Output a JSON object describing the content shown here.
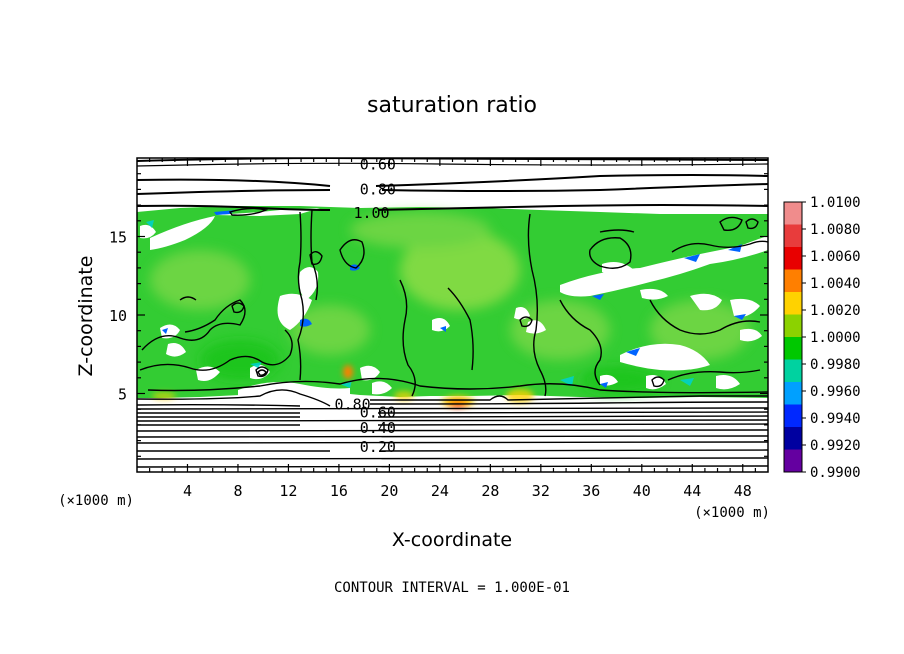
{
  "chart_data": {
    "type": "heatmap",
    "title": "saturation ratio",
    "xlabel": "X-coordinate",
    "ylabel": "Z-coordinate",
    "x_unit": "(×1000 m)",
    "z_unit": "(×1000 m)",
    "xlim": [
      0,
      50
    ],
    "ylim": [
      0,
      20
    ],
    "x_ticks": [
      4,
      8,
      12,
      16,
      20,
      24,
      28,
      32,
      36,
      40,
      44,
      48
    ],
    "y_ticks": [
      5,
      10,
      15
    ],
    "footer": "CONTOUR INTERVAL = 1.000E-01",
    "colorbar": {
      "labels": [
        "1.0100",
        "1.0080",
        "1.0060",
        "1.0040",
        "1.0020",
        "1.0000",
        "0.9980",
        "0.9960",
        "0.9940",
        "0.9920",
        "0.9900"
      ],
      "colors": [
        "#f08c8c",
        "#e83c3c",
        "#e80000",
        "#ff7f00",
        "#ffd200",
        "#8cd200",
        "#00c800",
        "#00d2a0",
        "#00a0ff",
        "#0028ff",
        "#0000a0",
        "#6400a0"
      ]
    },
    "contour_labels": [
      {
        "text": "0.60",
        "x": 17.5,
        "z": 19.6
      },
      {
        "text": "0.80",
        "x": 17.5,
        "z": 18.0
      },
      {
        "text": "1.00",
        "x": 17.0,
        "z": 16.5
      },
      {
        "text": "0.80",
        "x": 15.5,
        "z": 4.3
      },
      {
        "text": "0.60",
        "x": 17.5,
        "z": 3.8
      },
      {
        "text": "0.40",
        "x": 17.5,
        "z": 2.8
      },
      {
        "text": "0.20",
        "x": 17.5,
        "z": 1.6
      }
    ]
  }
}
